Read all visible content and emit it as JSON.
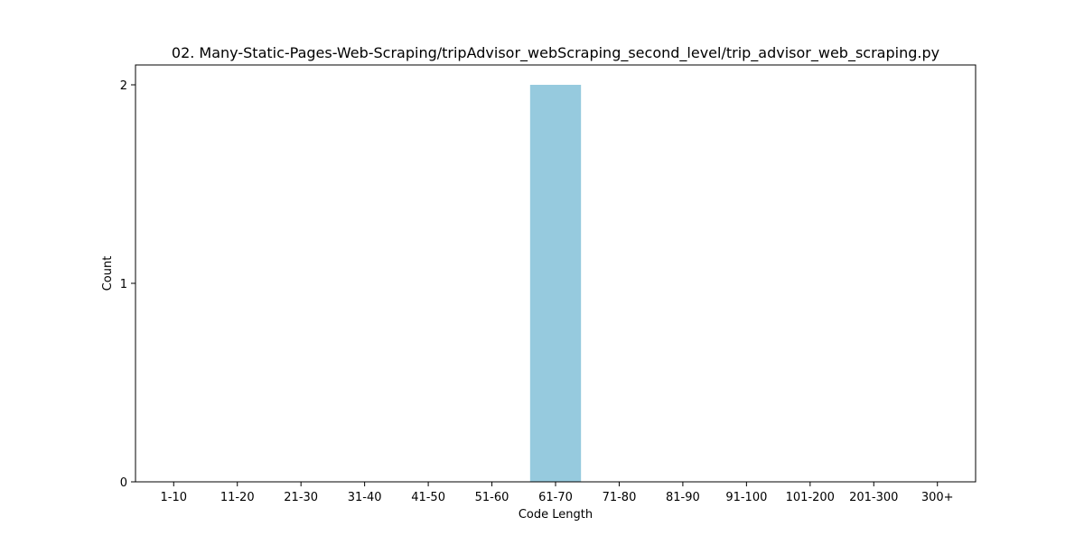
{
  "chart_data": {
    "type": "bar",
    "title": "02. Many-Static-Pages-Web-Scraping/tripAdvisor_webScraping_second_level/trip_advisor_web_scraping.py",
    "xlabel": "Code Length",
    "ylabel": "Count",
    "categories": [
      "1-10",
      "11-20",
      "21-30",
      "31-40",
      "41-50",
      "51-60",
      "61-70",
      "71-80",
      "81-90",
      "91-100",
      "101-200",
      "201-300",
      "300+"
    ],
    "values": [
      0,
      0,
      0,
      0,
      0,
      0,
      2,
      0,
      0,
      0,
      0,
      0,
      0
    ],
    "ylim": [
      0,
      2.1
    ],
    "yticks": [
      0,
      1,
      2
    ],
    "grid": false,
    "legend": "none",
    "bar_color": "#96cade",
    "spine_color": "#000000"
  }
}
